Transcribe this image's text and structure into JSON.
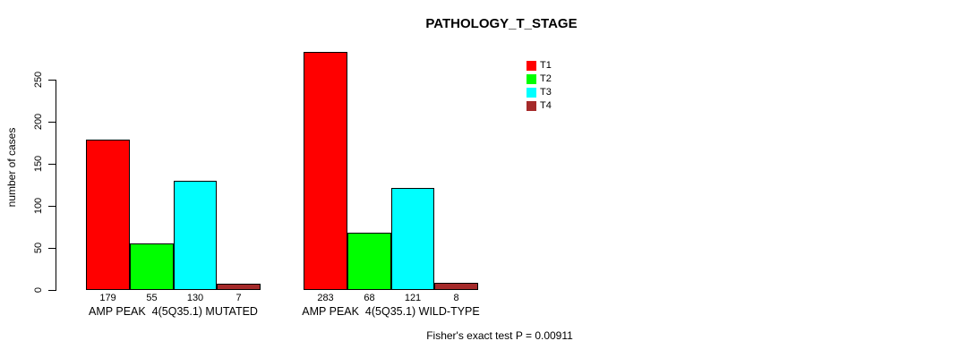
{
  "title": "PATHOLOGY_T_STAGE",
  "chart_data": {
    "type": "bar",
    "title": "PATHOLOGY_T_STAGE",
    "xlabel": "",
    "ylabel": "number of cases",
    "yticks": [
      0,
      50,
      100,
      150,
      200,
      250
    ],
    "ylim": [
      0,
      290
    ],
    "grid": false,
    "legend_position": "top-right",
    "categories": [
      "AMP PEAK  4(5Q35.1) MUTATED",
      "AMP PEAK  4(5Q35.1) WILD-TYPE"
    ],
    "series": [
      {
        "name": "T1",
        "color": "#FF0000",
        "values": [
          179,
          283
        ]
      },
      {
        "name": "T2",
        "color": "#00FF00",
        "values": [
          55,
          68
        ]
      },
      {
        "name": "T3",
        "color": "#00FFFF",
        "values": [
          130,
          121
        ]
      },
      {
        "name": "T4",
        "color": "#A52A2A",
        "values": [
          7,
          8
        ]
      }
    ],
    "bar_value_labels": [
      [
        179,
        55,
        130,
        7
      ],
      [
        283,
        68,
        121,
        8
      ]
    ],
    "footer": "Fisher's exact test P = 0.00911"
  }
}
